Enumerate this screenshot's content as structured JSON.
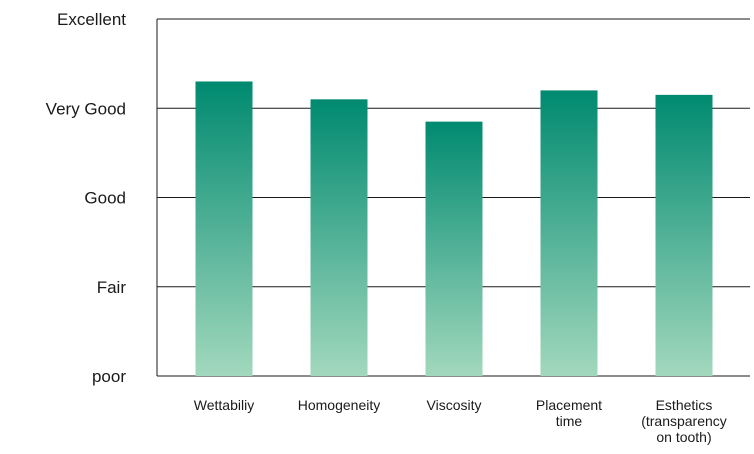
{
  "chart_data": {
    "type": "bar",
    "title": "",
    "xlabel": "",
    "ylabel": "",
    "y_scale_labels": [
      "poor",
      "Fair",
      "Good",
      "Very Good",
      "Excellent"
    ],
    "ylim": [
      0,
      4
    ],
    "grid": true,
    "categories": [
      [
        "Wettabiliy"
      ],
      [
        "Homogeneity"
      ],
      [
        "Viscosity"
      ],
      [
        "Placement",
        "time"
      ],
      [
        "Esthetics",
        "(transparency",
        "on tooth)"
      ]
    ],
    "values": [
      3.3,
      3.1,
      2.85,
      3.2,
      3.15
    ],
    "colors": {
      "bar_top": "#008a70",
      "bar_bottom": "#a2d8bd",
      "grid": "#1a1a1a",
      "text": "#1a1a1a"
    }
  }
}
